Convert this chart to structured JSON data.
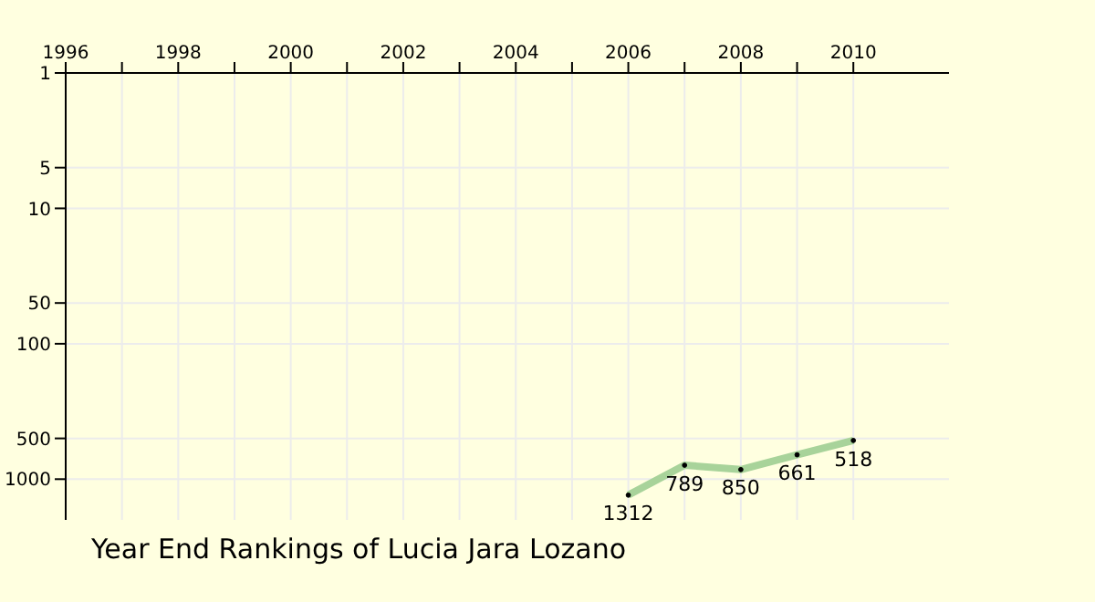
{
  "chart_data": {
    "type": "line",
    "title": "Year End Rankings of Lucia Jara Lozano",
    "x": [
      2006,
      2007,
      2008,
      2009,
      2010
    ],
    "series": [
      {
        "color": "#a8d39a",
        "values": [
          1312,
          789,
          850,
          661,
          518
        ]
      }
    ],
    "data_labels": true,
    "marker": "circle",
    "log": "y",
    "grid": true,
    "xlim": [
      1996,
      2011.7
    ],
    "xticks": [
      1996,
      {
        "value": 1997,
        "label": null
      },
      1998,
      {
        "value": 1999,
        "label": null
      },
      2000,
      {
        "value": 2001,
        "label": null
      },
      2002,
      {
        "value": 2003,
        "label": null
      },
      2004,
      {
        "value": 2005,
        "label": null
      },
      2006,
      {
        "value": 2007,
        "label": null
      },
      2008,
      {
        "value": 2009,
        "label": null
      },
      2010
    ],
    "ylim": [
      2000,
      1
    ],
    "yticks": [
      1,
      5,
      10,
      50,
      100,
      500,
      1000
    ]
  }
}
